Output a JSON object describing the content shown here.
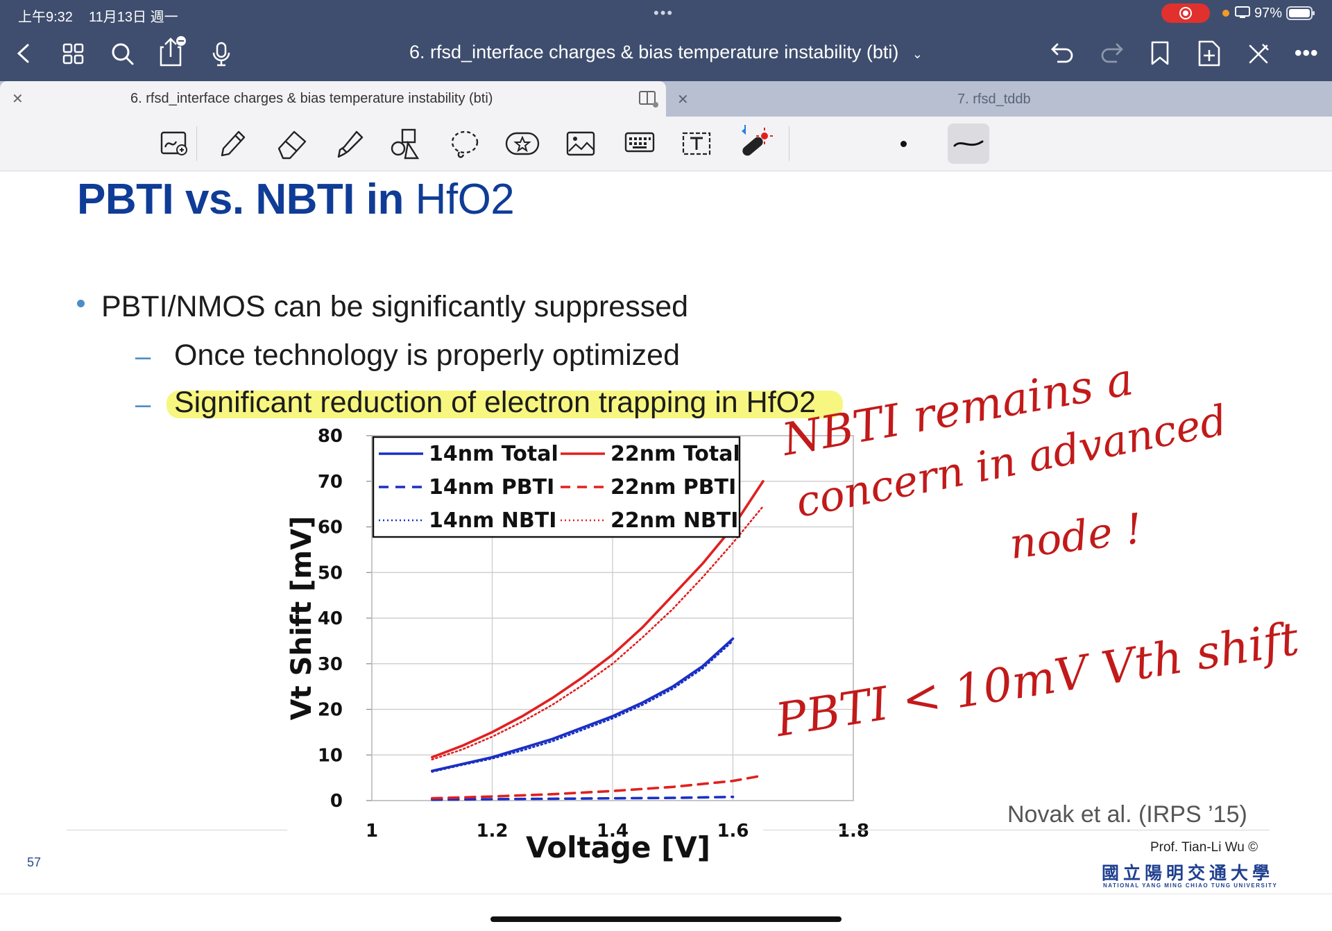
{
  "status_bar": {
    "time": "上午9:32",
    "date": "11月13日 週一",
    "battery": "97%"
  },
  "document": {
    "title": "6. rfsd_interface charges & bias temperature instability (bti)"
  },
  "tabs": [
    {
      "label": "6. rfsd_interface charges & bias temperature instability (bti)"
    },
    {
      "label": "7. rfsd_tddb"
    }
  ],
  "toolbar": {
    "tools": [
      "zoom-pen-icon",
      "pen-icon",
      "eraser-icon",
      "highlighter-icon",
      "shapes-icon",
      "lasso-icon",
      "sticker-icon",
      "image-icon",
      "keyboard-icon",
      "text-box-icon",
      "laser-pointer-icon"
    ]
  },
  "slide": {
    "title_bold": "PBTI vs. NBTI in",
    "title_light": " HfO2",
    "bullet": "PBTI/NMOS can be significantly suppressed",
    "sub1": "Once technology is properly optimized",
    "sub2": "Significant reduction of electron trapping in HfO2",
    "dash": "–",
    "reference": "Novak et al. (IRPS ’15)",
    "author": "Prof. Tian-Li Wu ©",
    "university_cn": "國立陽明交通大學",
    "university_en": "NATIONAL YANG MING CHIAO TUNG UNIVERSITY",
    "page_number": "57"
  },
  "annotations": {
    "line1": "NBTI remains a",
    "line2": "concern in advanced",
    "line3": "node !",
    "line4": "PBTI < 10mV Vth shift"
  },
  "chart_data": {
    "type": "line",
    "xlabel": "Voltage [V]",
    "ylabel": "Vt Shift [mV]",
    "xlim": [
      1,
      1.8
    ],
    "ylim": [
      0,
      80
    ],
    "xticks": [
      "1",
      "1.2",
      "1.4",
      "1.6",
      "1.8"
    ],
    "yticks": [
      "0",
      "10",
      "20",
      "30",
      "40",
      "50",
      "60",
      "70",
      "80"
    ],
    "grid": true,
    "legend": "top-left, two columns",
    "series": [
      {
        "name": "14nm Total",
        "color": "#1a2fc4",
        "dash": "solid",
        "x": [
          1.1,
          1.15,
          1.2,
          1.25,
          1.3,
          1.35,
          1.4,
          1.45,
          1.5,
          1.55,
          1.6
        ],
        "y": [
          6.5,
          8,
          9.5,
          11.5,
          13.5,
          16,
          18.5,
          21.5,
          25,
          29.5,
          35.5
        ]
      },
      {
        "name": "14nm PBTI",
        "color": "#1a2fc4",
        "dash": "dashed",
        "x": [
          1.1,
          1.2,
          1.3,
          1.4,
          1.5,
          1.6
        ],
        "y": [
          0.2,
          0.3,
          0.4,
          0.5,
          0.6,
          0.8
        ]
      },
      {
        "name": "14nm NBTI",
        "color": "#1a2fc4",
        "dash": "dotted",
        "x": [
          1.1,
          1.15,
          1.2,
          1.25,
          1.3,
          1.35,
          1.4,
          1.45,
          1.5,
          1.55,
          1.6
        ],
        "y": [
          6.3,
          7.8,
          9.2,
          11,
          13,
          15.5,
          18,
          21,
          24.5,
          29,
          35
        ]
      },
      {
        "name": "22nm Total",
        "color": "#e02020",
        "dash": "solid",
        "x": [
          1.1,
          1.15,
          1.2,
          1.25,
          1.3,
          1.35,
          1.4,
          1.45,
          1.5,
          1.55,
          1.6,
          1.65
        ],
        "y": [
          9.5,
          12,
          15,
          18.5,
          22.5,
          27,
          32,
          38,
          45,
          52,
          60,
          70
        ]
      },
      {
        "name": "22nm PBTI",
        "color": "#e02020",
        "dash": "dashed",
        "x": [
          1.1,
          1.2,
          1.3,
          1.4,
          1.5,
          1.6,
          1.65
        ],
        "y": [
          0.5,
          0.9,
          1.4,
          2.1,
          3,
          4.3,
          5.5
        ]
      },
      {
        "name": "22nm NBTI",
        "color": "#e02020",
        "dash": "dotted",
        "x": [
          1.1,
          1.15,
          1.2,
          1.25,
          1.3,
          1.35,
          1.4,
          1.45,
          1.5,
          1.55,
          1.6,
          1.65
        ],
        "y": [
          9,
          11.2,
          14,
          17.3,
          21,
          25.3,
          30,
          35.8,
          42,
          49,
          56.5,
          64.5
        ]
      }
    ]
  }
}
